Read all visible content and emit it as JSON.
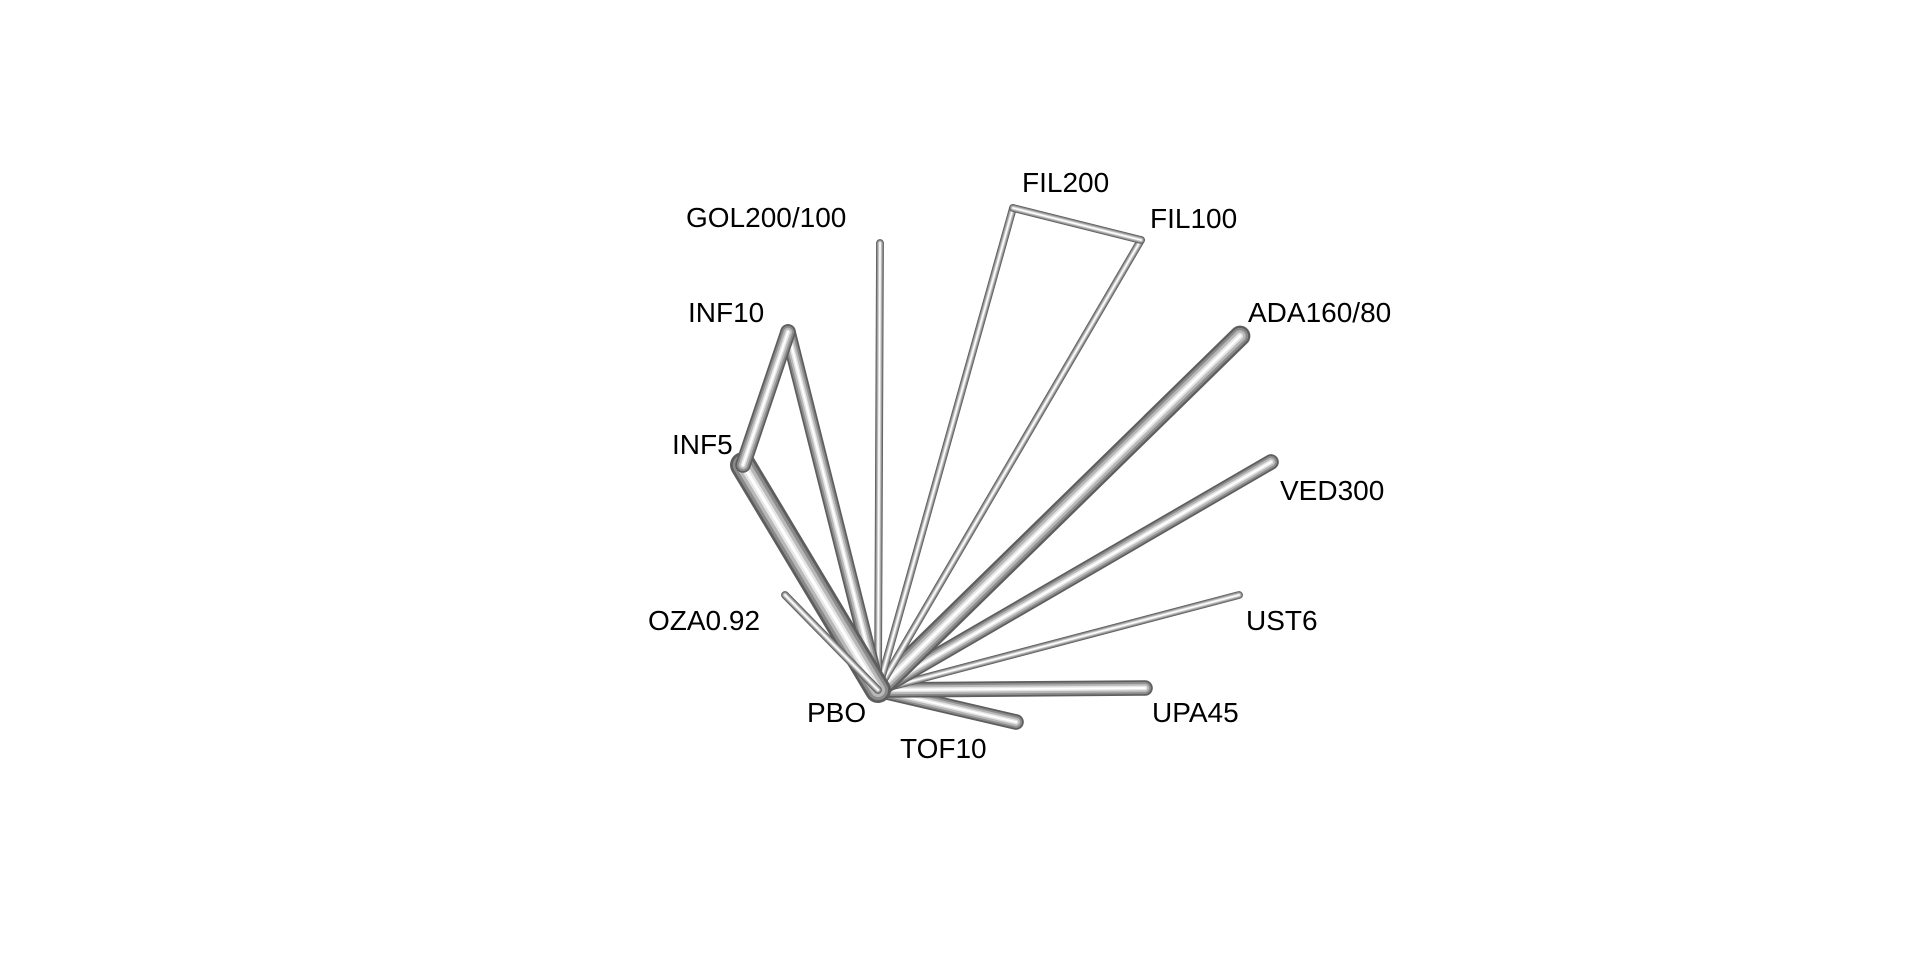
{
  "network": {
    "nodes": [
      {
        "id": "PBO",
        "label": "PBO"
      },
      {
        "id": "TOF10",
        "label": "TOF10"
      },
      {
        "id": "UPA45",
        "label": "UPA45"
      },
      {
        "id": "UST6",
        "label": "UST6"
      },
      {
        "id": "VED300",
        "label": "VED300"
      },
      {
        "id": "ADA160/80",
        "label": "ADA160/80"
      },
      {
        "id": "FIL100",
        "label": "FIL100"
      },
      {
        "id": "FIL200",
        "label": "FIL200"
      },
      {
        "id": "GOL200/100",
        "label": "GOL200/100"
      },
      {
        "id": "INF10",
        "label": "INF10"
      },
      {
        "id": "INF5",
        "label": "INF5"
      },
      {
        "id": "OZA0.92",
        "label": "OZA0.92"
      }
    ],
    "edges": [
      {
        "from": "PBO",
        "to": "TOF10",
        "weight": 3
      },
      {
        "from": "PBO",
        "to": "UPA45",
        "weight": 3
      },
      {
        "from": "PBO",
        "to": "UST6",
        "weight": 1.5
      },
      {
        "from": "PBO",
        "to": "VED300",
        "weight": 3
      },
      {
        "from": "PBO",
        "to": "ADA160/80",
        "weight": 4
      },
      {
        "from": "PBO",
        "to": "FIL100",
        "weight": 1.5
      },
      {
        "from": "PBO",
        "to": "FIL200",
        "weight": 1.5
      },
      {
        "from": "FIL100",
        "to": "FIL200",
        "weight": 1.5
      },
      {
        "from": "PBO",
        "to": "GOL200/100",
        "weight": 1.5
      },
      {
        "from": "PBO",
        "to": "INF10",
        "weight": 3
      },
      {
        "from": "PBO",
        "to": "INF5",
        "weight": 5
      },
      {
        "from": "INF10",
        "to": "INF5",
        "weight": 3
      },
      {
        "from": "PBO",
        "to": "OZA0.92",
        "weight": 1.5
      }
    ]
  }
}
